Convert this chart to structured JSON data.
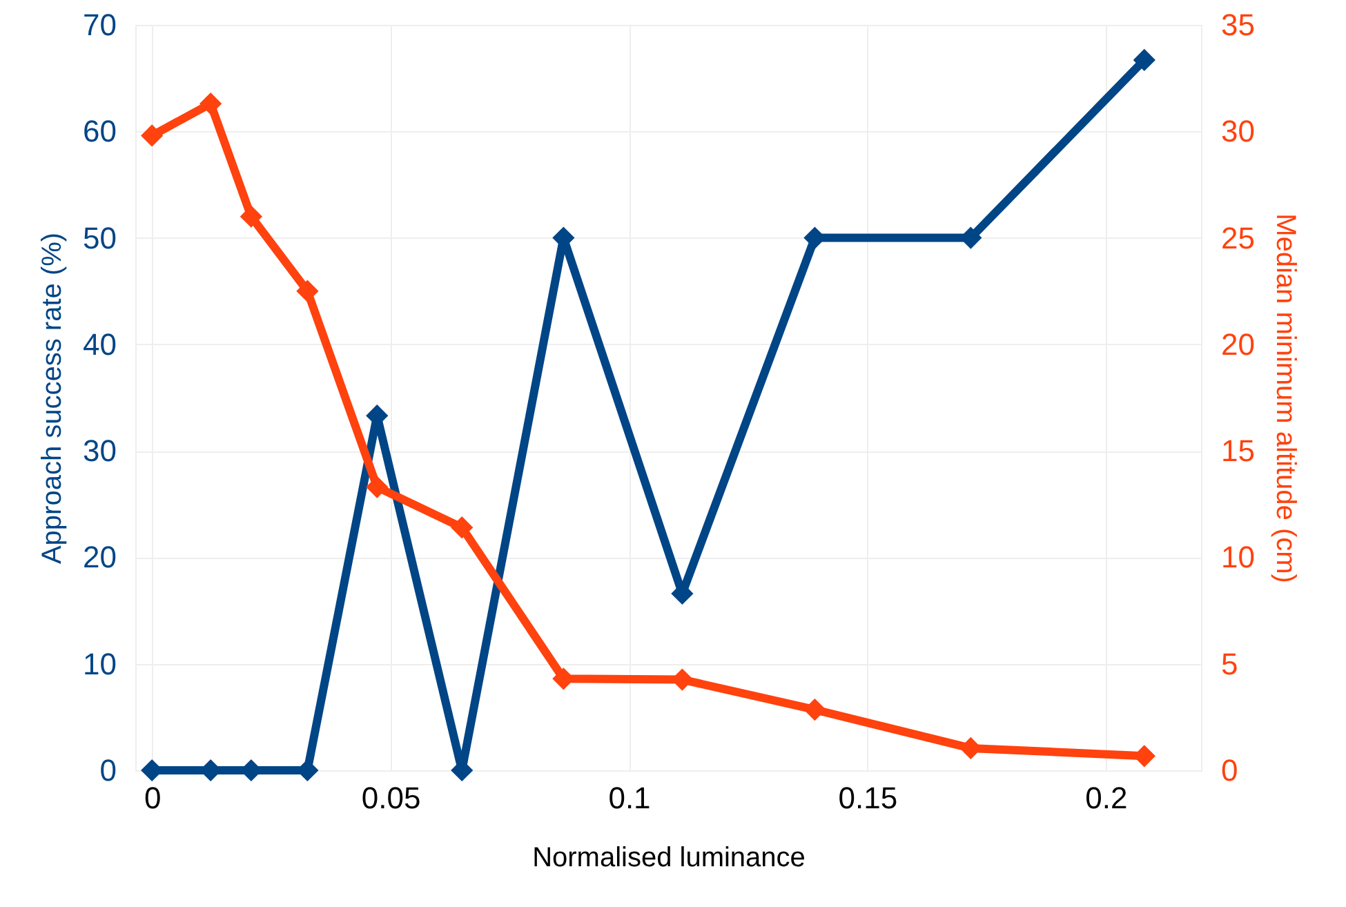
{
  "chart_data": {
    "type": "line",
    "xlabel": "Normalised luminance",
    "ylabel": "Approach success rate (%)",
    "y2label": "Median minimum altitude (cm)",
    "x": [
      0,
      0.0123,
      0.0208,
      0.0326,
      0.0472,
      0.065,
      0.0863,
      0.1112,
      0.139,
      0.1717,
      0.2081
    ],
    "series": [
      {
        "color": "#004586",
        "values": [
          0,
          0,
          0,
          0,
          33.3,
          0,
          50,
          16.6,
          50,
          50,
          66.7
        ]
      },
      {
        "color": "#ff420e",
        "axis": "y2",
        "values": [
          29.8,
          31.3,
          26.0,
          22.5,
          13.3,
          11.4,
          4.3,
          4.26,
          2.85,
          1.04,
          0.67
        ]
      }
    ],
    "xlim": [
      -0.0035,
      0.22
    ],
    "xticks": [
      0,
      0.05,
      0.1,
      0.15,
      0.2
    ],
    "ylim": [
      0,
      70
    ],
    "yticks": [
      0,
      10,
      20,
      30,
      40,
      50,
      60,
      70
    ],
    "y2lim": [
      0,
      35
    ],
    "y2ticks": [
      0,
      5,
      10,
      15,
      20,
      25,
      30,
      35
    ],
    "grid": true,
    "marker": "diamond",
    "line_style": "solid"
  }
}
